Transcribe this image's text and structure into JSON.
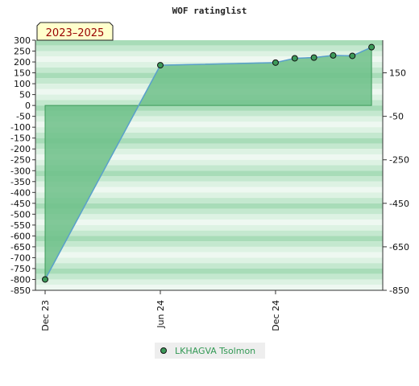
{
  "chart_data": {
    "type": "area",
    "title": "WOF ratinglist",
    "period_label": "2023–2025",
    "x_ticks": [
      "Dec 23",
      "Jun 24",
      "Dec 24"
    ],
    "y_left": {
      "min": -850,
      "max": 300,
      "step": 50,
      "ticks": [
        300,
        250,
        200,
        150,
        100,
        50,
        0,
        -50,
        -100,
        -150,
        -200,
        -250,
        -300,
        -350,
        -400,
        -450,
        -500,
        -550,
        -600,
        -650,
        -700,
        -750,
        -800,
        -850
      ]
    },
    "y_right": {
      "ticks": [
        150,
        -50,
        -250,
        -450,
        -650,
        -850
      ]
    },
    "series": [
      {
        "name": "LKHAGVA Tsolmon",
        "x": [
          "2023-12",
          "2024-06",
          "2024-12",
          "2025-01",
          "2025-02",
          "2025-03",
          "2025-04",
          "2025-05"
        ],
        "values": [
          -800,
          185,
          197,
          217,
          220,
          230,
          228,
          268
        ]
      }
    ],
    "grid": true,
    "legend": "bottom-center",
    "colors": {
      "line": "#5aa0cc",
      "fill": "#6dbf88",
      "marker": "#3d9a5a",
      "legend_text": "#339955"
    }
  }
}
